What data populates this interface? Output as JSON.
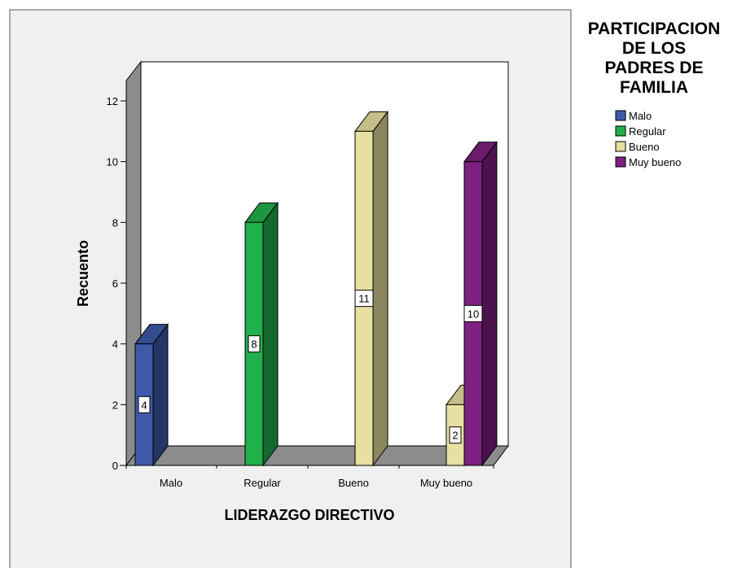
{
  "chart_data": {
    "type": "bar",
    "style": "3d-clustered",
    "xlabel": "LIDERAZGO DIRECTIVO",
    "ylabel": "Recuento",
    "categories": [
      "Malo",
      "Regular",
      "Bueno",
      "Muy bueno"
    ],
    "ylim": [
      0,
      12
    ],
    "yticks": [
      0,
      2,
      4,
      6,
      8,
      10,
      12
    ],
    "grid": false,
    "legend": {
      "title_lines": [
        "PARTICIPACION",
        "DE LOS",
        "PADRES DE",
        "FAMILIA"
      ],
      "placement": "top-right"
    },
    "series": [
      {
        "name": "Malo",
        "color": "#3c5aa8",
        "values": [
          4,
          null,
          null,
          null
        ]
      },
      {
        "name": "Regular",
        "color": "#22b04c",
        "values": [
          null,
          8,
          null,
          null
        ]
      },
      {
        "name": "Bueno",
        "color": "#e8e0a0",
        "values": [
          null,
          null,
          11,
          2
        ]
      },
      {
        "name": "Muy bueno",
        "color": "#7d2081",
        "values": [
          null,
          null,
          null,
          10
        ]
      }
    ]
  }
}
